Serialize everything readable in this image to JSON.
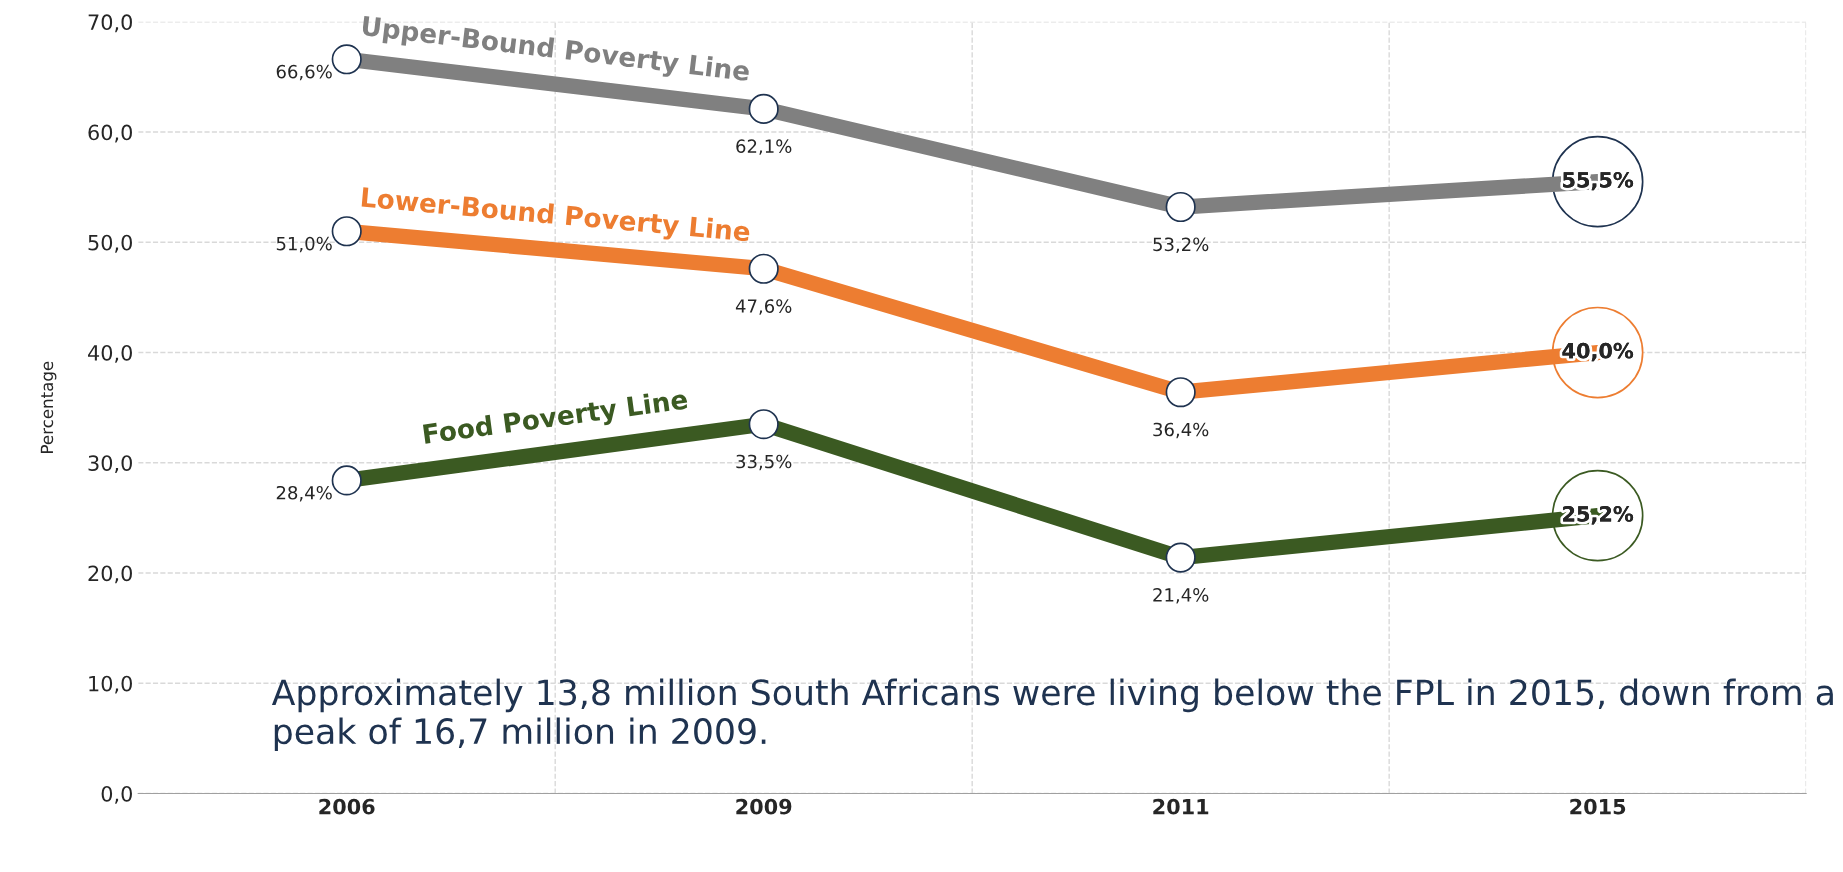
{
  "chart_data": {
    "type": "line",
    "ylabel": "Percentage",
    "categories": [
      "2006",
      "2009",
      "2011",
      "2015"
    ],
    "series": [
      {
        "name": "Upper-Bound Poverty Line",
        "color": "#808080",
        "values": [
          66.6,
          62.1,
          53.2,
          55.5
        ],
        "value_labels": [
          "66,6%",
          "62,1%",
          "53,2%",
          "55,5%"
        ]
      },
      {
        "name": "Lower-Bound Poverty Line",
        "color": "#ed7d31",
        "values": [
          51.0,
          47.6,
          36.4,
          40.0
        ],
        "value_labels": [
          "51,0%",
          "47,6%",
          "36,4%",
          "40,0%"
        ]
      },
      {
        "name": "Food Poverty Line",
        "color": "#3b5a22",
        "values": [
          28.4,
          33.5,
          21.4,
          25.2
        ],
        "value_labels": [
          "28,4%",
          "33,5%",
          "21,4%",
          "25,2%"
        ]
      }
    ],
    "ylim": [
      0,
      70
    ],
    "yticks": [
      {
        "value": 0,
        "label": "0,0"
      },
      {
        "value": 10,
        "label": "10,0"
      },
      {
        "value": 20,
        "label": "20,0"
      },
      {
        "value": 30,
        "label": "30,0"
      },
      {
        "value": 40,
        "label": "40,0"
      },
      {
        "value": 50,
        "label": "50,0"
      },
      {
        "value": 60,
        "label": "60,0"
      },
      {
        "value": 70,
        "label": "70,0"
      }
    ],
    "grid": true,
    "legend": false,
    "marker": "circle",
    "line_style": "solid",
    "annotations": [
      "Approximately 13,8 million South Africans were living below the FPL in 2015, down from a peak of 16,7 million in 2009."
    ]
  }
}
